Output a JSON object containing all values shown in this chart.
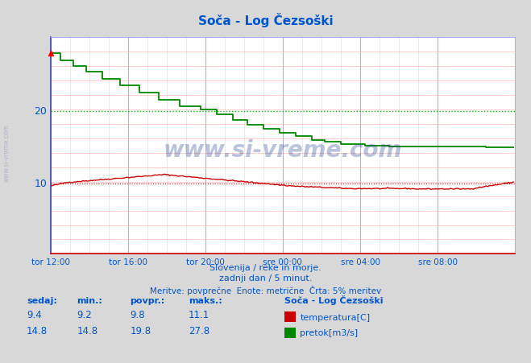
{
  "title": "Soča - Log Čezsoški",
  "title_color": "#0055cc",
  "bg_color": "#d8d8d8",
  "plot_bg_color": "#ffffff",
  "grid_color_h": "#ffaaaa",
  "grid_color_v": "#aaaaff",
  "temp_color": "#cc0000",
  "flow_color": "#008800",
  "avg_flow_color": "#00bb00",
  "avg_temp_color": "#cc0000",
  "text_color": "#0055cc",
  "watermark": "www.si-vreme.com",
  "watermark_color": "#1a3a8a",
  "subtitle1": "Slovenija / reke in morje.",
  "subtitle2": "zadnji dan / 5 minut.",
  "subtitle3": "Meritve: povprečne  Enote: metrične  Črta: 5% meritev",
  "legend_title": "Soča - Log Čezsoški",
  "legend_items": [
    "temperatura[C]",
    "pretok[m3/s]"
  ],
  "legend_colors": [
    "#cc0000",
    "#008800"
  ],
  "table_headers": [
    "sedaj:",
    "min.:",
    "povpr.:",
    "maks.:"
  ],
  "table_temp": [
    9.4,
    9.2,
    9.8,
    11.1
  ],
  "table_flow": [
    14.8,
    14.8,
    19.8,
    27.8
  ],
  "x_tick_labels": [
    "tor 12:00",
    "tor 16:00",
    "tor 20:00",
    "sre 00:00",
    "sre 04:00",
    "sre 08:00"
  ],
  "x_tick_positions": [
    0,
    48,
    96,
    144,
    192,
    240
  ],
  "total_points": 288,
  "ymin": 0,
  "ymax": 30,
  "yticks": [
    10,
    20
  ],
  "avg_temp": 9.8,
  "avg_flow": 19.8
}
